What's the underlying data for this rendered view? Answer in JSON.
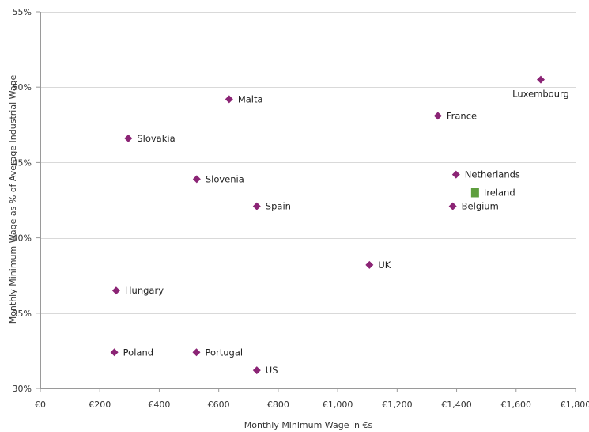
{
  "chart_data": {
    "type": "scatter",
    "xlabel": "Monthly Minimum Wage in €s",
    "ylabel": "Monthly Minimum Wage as % of Average Industrial Wage",
    "xlim": [
      0,
      1800
    ],
    "ylim": [
      30,
      55
    ],
    "x_ticks": [
      {
        "value": 0,
        "label": "€0"
      },
      {
        "value": 200,
        "label": "€200"
      },
      {
        "value": 400,
        "label": "€400"
      },
      {
        "value": 600,
        "label": "€600"
      },
      {
        "value": 800,
        "label": "€800"
      },
      {
        "value": 1000,
        "label": "€1,000"
      },
      {
        "value": 1200,
        "label": "€1,200"
      },
      {
        "value": 1400,
        "label": "€1,400"
      },
      {
        "value": 1600,
        "label": "€1,600"
      },
      {
        "value": 1800,
        "label": "€1,800"
      }
    ],
    "y_ticks": [
      {
        "value": 30,
        "label": "30%"
      },
      {
        "value": 35,
        "label": "35%"
      },
      {
        "value": 40,
        "label": "40%"
      },
      {
        "value": 45,
        "label": "45%"
      },
      {
        "value": 50,
        "label": "50%"
      },
      {
        "value": 55,
        "label": "55%"
      }
    ],
    "grid": {
      "horizontal": true,
      "vertical": false
    },
    "colors": {
      "default": "#8B2475",
      "highlight": "#5E9E3E",
      "label_highlight": "#1F3864"
    },
    "points": [
      {
        "name": "Luxembourg",
        "x": 1683,
        "y": 50.5,
        "label_pos": "below"
      },
      {
        "name": "Malta",
        "x": 635,
        "y": 49.2,
        "label_pos": "right"
      },
      {
        "name": "France",
        "x": 1337,
        "y": 48.1,
        "label_pos": "right"
      },
      {
        "name": "Slovakia",
        "x": 296,
        "y": 46.6,
        "label_pos": "right"
      },
      {
        "name": "Netherlands",
        "x": 1398,
        "y": 44.2,
        "label_pos": "right"
      },
      {
        "name": "Slovenia",
        "x": 526,
        "y": 43.9,
        "label_pos": "right"
      },
      {
        "name": "Ireland",
        "x": 1462,
        "y": 43.0,
        "marker": "square",
        "label_pos": "right"
      },
      {
        "name": "Spain",
        "x": 728,
        "y": 42.1,
        "label_pos": "right"
      },
      {
        "name": "Belgium",
        "x": 1387,
        "y": 42.1,
        "label_pos": "right"
      },
      {
        "name": "UK",
        "x": 1107,
        "y": 38.2,
        "label_pos": "right"
      },
      {
        "name": "Hungary",
        "x": 255,
        "y": 36.5,
        "label_pos": "right"
      },
      {
        "name": "Poland",
        "x": 249,
        "y": 32.4,
        "label_pos": "right",
        "label_color": "highlight"
      },
      {
        "name": "Portugal",
        "x": 525,
        "y": 32.4,
        "label_pos": "right"
      },
      {
        "name": "US",
        "x": 728,
        "y": 31.2,
        "label_pos": "right"
      }
    ]
  }
}
